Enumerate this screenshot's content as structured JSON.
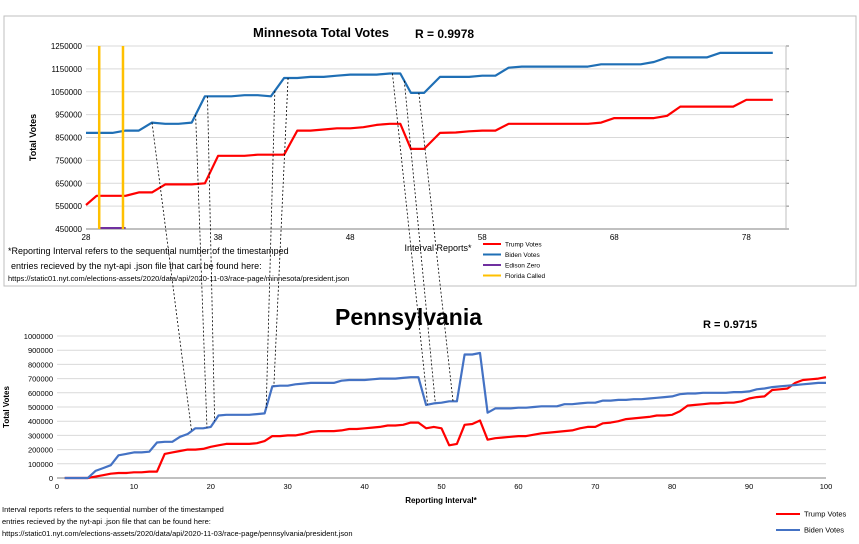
{
  "chart_data": [
    {
      "type": "line",
      "title": "Minnesota Total Votes",
      "annotation": "R = 0.9978",
      "xlabel": "Interval Reports*",
      "ylabel": "Total Votes",
      "xlim": [
        28,
        81
      ],
      "ylim": [
        450000,
        1250000
      ],
      "xticks": [
        "28",
        "38",
        "48",
        "58",
        "68",
        "78"
      ],
      "yticks": [
        "450000",
        "550000",
        "650000",
        "750000",
        "850000",
        "950000",
        "1050000",
        "1150000",
        "1250000"
      ],
      "grid": "horizontal",
      "legend_position": "bottom-right",
      "series": [
        {
          "name": "Trump Votes",
          "color": "#ff0000",
          "x": [
            28,
            28.8,
            30,
            31,
            32,
            33,
            34,
            35,
            36,
            37,
            38,
            39,
            40,
            41,
            42,
            43,
            44,
            45,
            46,
            47,
            48,
            49,
            50,
            51,
            51.8,
            52.6,
            53.6,
            54.8,
            56,
            57,
            58,
            59,
            60,
            61,
            62,
            63,
            64,
            65,
            66,
            67,
            68,
            69,
            70,
            71,
            72,
            73,
            74,
            75,
            76,
            77,
            78,
            79,
            80
          ],
          "y": [
            555000,
            595000,
            595000,
            595000,
            610000,
            610000,
            645000,
            645000,
            645000,
            650000,
            770000,
            770000,
            770000,
            775000,
            775000,
            775000,
            880000,
            880000,
            885000,
            890000,
            890000,
            895000,
            905000,
            910000,
            910000,
            800000,
            800000,
            870000,
            872000,
            877000,
            880000,
            880000,
            910000,
            910000,
            910000,
            910000,
            910000,
            910000,
            910000,
            915000,
            935000,
            935000,
            935000,
            935000,
            945000,
            985000,
            985000,
            985000,
            985000,
            985000,
            1015000,
            1015000,
            1015000
          ]
        },
        {
          "name": "Biden Votes",
          "color": "#1f6fb5",
          "x": [
            28,
            29,
            30,
            31,
            32,
            33,
            34,
            35,
            36,
            37,
            38,
            39,
            40,
            41,
            42,
            43,
            44,
            45,
            46,
            47,
            48,
            49,
            50,
            51,
            51.8,
            52.6,
            53.6,
            54.8,
            56,
            57,
            58,
            59,
            60,
            61,
            62,
            63,
            64,
            65,
            66,
            67,
            68,
            69,
            70,
            71,
            72,
            73,
            74,
            75,
            76,
            77,
            78,
            79,
            80
          ],
          "y": [
            870000,
            870000,
            870000,
            880000,
            880000,
            915000,
            910000,
            910000,
            915000,
            1030000,
            1030000,
            1030000,
            1035000,
            1035000,
            1030000,
            1110000,
            1110000,
            1115000,
            1115000,
            1120000,
            1125000,
            1125000,
            1125000,
            1130000,
            1130000,
            1045000,
            1045000,
            1115000,
            1115000,
            1115000,
            1120000,
            1120000,
            1155000,
            1160000,
            1160000,
            1160000,
            1160000,
            1160000,
            1160000,
            1170000,
            1170000,
            1170000,
            1170000,
            1180000,
            1200000,
            1200000,
            1200000,
            1200000,
            1220000,
            1220000,
            1220000,
            1220000,
            1220000
          ]
        },
        {
          "name": "Edison Zero",
          "color": "#7030a0",
          "x": [
            29,
            31
          ],
          "y": [
            450000,
            450000
          ]
        },
        {
          "name": "Florida Called",
          "color": "#ffc000",
          "x": [
            29,
            30.8
          ],
          "y": [
            450000,
            450000
          ],
          "vertical_lines_at": [
            29,
            30.8
          ]
        }
      ]
    },
    {
      "type": "line",
      "title": "Pennsylvania",
      "annotation": "R = 0.9715",
      "xlabel": "Reporting Interval*",
      "ylabel": "Total Votes",
      "xlim": [
        0,
        100
      ],
      "ylim": [
        0,
        1000000
      ],
      "xticks": [
        "0",
        "10",
        "20",
        "30",
        "40",
        "50",
        "60",
        "70",
        "80",
        "90",
        "100"
      ],
      "yticks": [
        "0",
        "100000",
        "200000",
        "300000",
        "400000",
        "500000",
        "600000",
        "700000",
        "800000",
        "900000",
        "1000000"
      ],
      "grid": "horizontal",
      "legend_position": "bottom-right",
      "series": [
        {
          "name": "Trump Votes",
          "color": "#ff0000",
          "x": [
            1,
            4,
            5,
            6,
            7,
            8,
            9,
            10,
            11,
            12,
            13,
            14,
            15,
            16,
            17,
            18,
            19,
            20,
            21,
            22,
            23,
            24,
            25,
            26,
            27,
            28,
            29,
            30,
            31,
            32,
            33,
            34,
            35,
            36,
            37,
            38,
            39,
            40,
            41,
            42,
            43,
            44,
            45,
            46,
            47,
            48,
            49,
            50,
            51,
            52,
            53,
            54,
            55,
            56,
            57,
            58,
            59,
            60,
            61,
            62,
            63,
            64,
            65,
            66,
            67,
            68,
            69,
            70,
            71,
            72,
            73,
            74,
            75,
            76,
            77,
            78,
            79,
            80,
            81,
            82,
            83,
            84,
            85,
            86,
            87,
            88,
            89,
            90,
            91,
            92,
            93,
            94,
            95,
            96,
            97,
            98,
            99,
            100
          ],
          "y": [
            0,
            0,
            10000,
            20000,
            30000,
            35000,
            35000,
            40000,
            40000,
            45000,
            45000,
            170000,
            180000,
            190000,
            200000,
            200000,
            205000,
            220000,
            230000,
            240000,
            240000,
            240000,
            240000,
            245000,
            260000,
            295000,
            295000,
            300000,
            300000,
            310000,
            325000,
            330000,
            330000,
            330000,
            335000,
            345000,
            345000,
            350000,
            355000,
            360000,
            370000,
            370000,
            375000,
            390000,
            390000,
            350000,
            360000,
            350000,
            230000,
            240000,
            375000,
            380000,
            405000,
            270000,
            280000,
            285000,
            290000,
            295000,
            295000,
            305000,
            315000,
            320000,
            325000,
            330000,
            335000,
            350000,
            360000,
            360000,
            385000,
            390000,
            400000,
            415000,
            420000,
            425000,
            430000,
            440000,
            440000,
            445000,
            470000,
            510000,
            515000,
            520000,
            525000,
            525000,
            530000,
            530000,
            540000,
            560000,
            570000,
            575000,
            620000,
            625000,
            630000,
            670000,
            690000,
            695000,
            700000,
            710000
          ]
        },
        {
          "name": "Biden Votes",
          "color": "#4472c4",
          "x": [
            1,
            4,
            5,
            6,
            7,
            8,
            9,
            10,
            11,
            12,
            13,
            14,
            15,
            16,
            17,
            18,
            19,
            20,
            21,
            22,
            23,
            24,
            25,
            26,
            27,
            28,
            29,
            30,
            31,
            32,
            33,
            34,
            35,
            36,
            37,
            38,
            39,
            40,
            41,
            42,
            43,
            44,
            45,
            46,
            47,
            48,
            49,
            50,
            51,
            52,
            53,
            54,
            55,
            56,
            57,
            58,
            59,
            60,
            61,
            62,
            63,
            64,
            65,
            66,
            67,
            68,
            69,
            70,
            71,
            72,
            73,
            74,
            75,
            76,
            77,
            78,
            79,
            80,
            81,
            82,
            83,
            84,
            85,
            86,
            87,
            88,
            89,
            90,
            91,
            92,
            93,
            94,
            95,
            96,
            97,
            98,
            99,
            100
          ],
          "y": [
            0,
            0,
            50000,
            70000,
            90000,
            160000,
            170000,
            180000,
            180000,
            185000,
            250000,
            255000,
            255000,
            290000,
            310000,
            350000,
            350000,
            360000,
            440000,
            445000,
            445000,
            445000,
            445000,
            450000,
            455000,
            645000,
            650000,
            650000,
            660000,
            665000,
            670000,
            670000,
            670000,
            670000,
            685000,
            690000,
            690000,
            690000,
            695000,
            700000,
            700000,
            700000,
            705000,
            710000,
            710000,
            515000,
            525000,
            530000,
            540000,
            540000,
            870000,
            870000,
            880000,
            460000,
            490000,
            490000,
            490000,
            495000,
            495000,
            500000,
            505000,
            505000,
            505000,
            520000,
            520000,
            525000,
            530000,
            530000,
            545000,
            545000,
            550000,
            550000,
            555000,
            555000,
            560000,
            565000,
            570000,
            575000,
            590000,
            595000,
            595000,
            600000,
            600000,
            600000,
            600000,
            605000,
            605000,
            610000,
            625000,
            630000,
            640000,
            645000,
            650000,
            655000,
            660000,
            665000,
            670000,
            670000
          ]
        }
      ]
    }
  ],
  "mn_footnote_lines": [
    "*Reporting Interval refers to the sequential number of the timestamped",
    "entries recieved by the nyt-api .json file that can be found here:",
    "https://static01.nyt.com/elections-assets/2020/data/api/2020-11-03/race-page/minnesota/president.json"
  ],
  "pa_footnote_lines": [
    "Interval reports refers to the sequential number of the timestamped",
    "entries recieved by the nyt-api .json file that can be found here:",
    "https://static01.nyt.com/elections-assets/2020/data/api/2020-11-03/race-page/pennsylvania/president.json"
  ],
  "connector_color": "#000000",
  "connectors": [
    {
      "mn_x": 33,
      "mn_series": "Biden Votes",
      "pa_x": 17.5,
      "pa_series": "Biden Votes"
    },
    {
      "mn_x": 36.3,
      "mn_series": "Biden Votes",
      "pa_x": 19.5,
      "pa_series": "Biden Votes"
    },
    {
      "mn_x": 37.2,
      "mn_series": "Biden Votes",
      "pa_x": 20.5,
      "pa_series": "Biden Votes"
    },
    {
      "mn_x": 42.3,
      "mn_series": "Biden Votes",
      "pa_x": 27.2,
      "pa_series": "Biden Votes"
    },
    {
      "mn_x": 43.3,
      "mn_series": "Biden Votes",
      "pa_x": 28.2,
      "pa_series": "Biden Votes"
    },
    {
      "mn_x": 51.2,
      "mn_series": "Biden Votes",
      "pa_x": 48.2,
      "pa_series": "Biden Votes"
    },
    {
      "mn_x": 52.1,
      "mn_series": "Biden Votes",
      "pa_x": 49.2,
      "pa_series": "Biden Votes"
    },
    {
      "mn_x": 53.2,
      "mn_series": "Biden Votes",
      "pa_x": 51.5,
      "pa_series": "Biden Votes"
    }
  ]
}
